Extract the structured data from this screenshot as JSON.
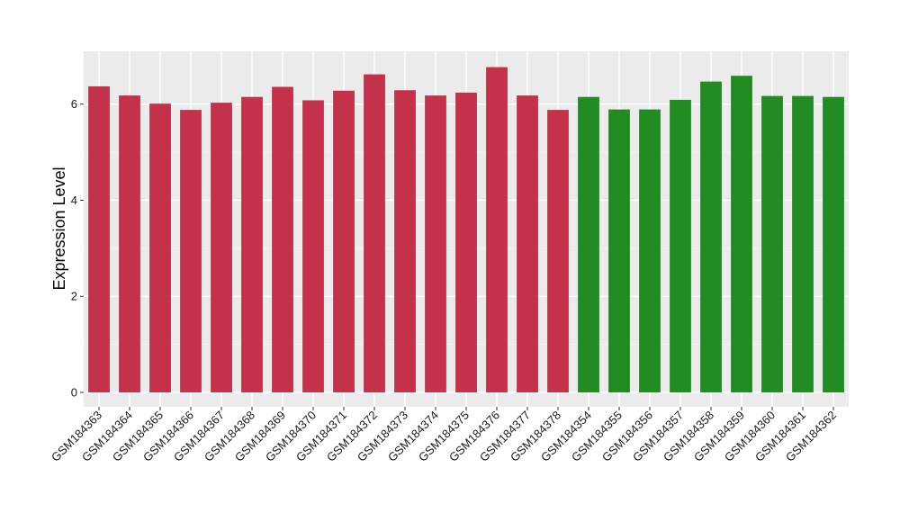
{
  "colors": {
    "panel_background": "#ebebeb",
    "grid_major": "#ffffff",
    "grid_minor": "#f5f5f5",
    "group_red": "#c4314b",
    "group_green": "#228b22"
  },
  "chart_data": {
    "type": "bar",
    "ylabel": "Expression Level",
    "xlabel": "",
    "ylim": [
      -0.3,
      7.1
    ],
    "yticks": [
      0,
      2,
      4,
      6
    ],
    "grid": true,
    "legend": "none",
    "categories": [
      "GSM184363",
      "GSM184364",
      "GSM184365",
      "GSM184366",
      "GSM184367",
      "GSM184368",
      "GSM184369",
      "GSM184370",
      "GSM184371",
      "GSM184372",
      "GSM184373",
      "GSM184374",
      "GSM184375",
      "GSM184376",
      "GSM184377",
      "GSM184378",
      "GSM184354",
      "GSM184355",
      "GSM184356",
      "GSM184357",
      "GSM184358",
      "GSM184359",
      "GSM184360",
      "GSM184361",
      "GSM184362"
    ],
    "values": [
      6.37,
      6.18,
      6.01,
      5.88,
      6.03,
      6.15,
      6.36,
      6.08,
      6.28,
      6.62,
      6.29,
      6.18,
      6.24,
      6.77,
      6.18,
      5.88,
      6.15,
      5.89,
      5.89,
      6.09,
      6.47,
      6.59,
      6.17,
      6.17,
      6.15
    ],
    "group_colors": [
      "#c4314b",
      "#c4314b",
      "#c4314b",
      "#c4314b",
      "#c4314b",
      "#c4314b",
      "#c4314b",
      "#c4314b",
      "#c4314b",
      "#c4314b",
      "#c4314b",
      "#c4314b",
      "#c4314b",
      "#c4314b",
      "#c4314b",
      "#c4314b",
      "#228b22",
      "#228b22",
      "#228b22",
      "#228b22",
      "#228b22",
      "#228b22",
      "#228b22",
      "#228b22",
      "#228b22"
    ]
  }
}
